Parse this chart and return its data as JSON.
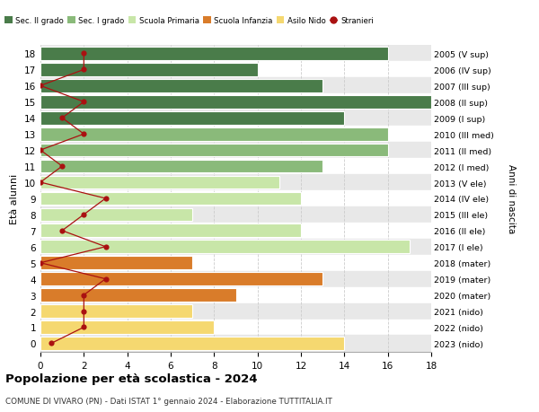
{
  "ages": [
    18,
    17,
    16,
    15,
    14,
    13,
    12,
    11,
    10,
    9,
    8,
    7,
    6,
    5,
    4,
    3,
    2,
    1,
    0
  ],
  "right_labels": [
    "2005 (V sup)",
    "2006 (IV sup)",
    "2007 (III sup)",
    "2008 (II sup)",
    "2009 (I sup)",
    "2010 (III med)",
    "2011 (II med)",
    "2012 (I med)",
    "2013 (V ele)",
    "2014 (IV ele)",
    "2015 (III ele)",
    "2016 (II ele)",
    "2017 (I ele)",
    "2018 (mater)",
    "2019 (mater)",
    "2020 (mater)",
    "2021 (nido)",
    "2022 (nido)",
    "2023 (nido)"
  ],
  "bar_values": [
    16,
    10,
    13,
    18,
    14,
    16,
    16,
    13,
    11,
    12,
    7,
    12,
    17,
    7,
    13,
    9,
    7,
    8,
    14
  ],
  "stranieri_values": [
    2,
    2,
    0,
    2,
    1,
    2,
    0,
    1,
    0,
    3,
    2,
    1,
    3,
    0,
    3,
    2,
    2,
    2,
    0.5
  ],
  "bar_colors": [
    "#4a7c4a",
    "#4a7c4a",
    "#4a7c4a",
    "#4a7c4a",
    "#4a7c4a",
    "#8aba7a",
    "#8aba7a",
    "#8aba7a",
    "#c8e6a8",
    "#c8e6a8",
    "#c8e6a8",
    "#c8e6a8",
    "#c8e6a8",
    "#d97c2a",
    "#d97c2a",
    "#d97c2a",
    "#f5d870",
    "#f5d870",
    "#f5d870"
  ],
  "legend_labels": [
    "Sec. II grado",
    "Sec. I grado",
    "Scuola Primaria",
    "Scuola Infanzia",
    "Asilo Nido",
    "Stranieri"
  ],
  "legend_colors_patch": [
    "#4a7c4a",
    "#8aba7a",
    "#c8e6a8",
    "#d97c2a",
    "#f5d870"
  ],
  "stranieri_color": "#aa1111",
  "title": "Popolazione per età scolastica - 2024",
  "subtitle": "COMUNE DI VIVARO (PN) - Dati ISTAT 1° gennaio 2024 - Elaborazione TUTTITALIA.IT",
  "ylabel": "Età alunni",
  "right_ylabel": "Anni di nascita",
  "xlim": [
    0,
    18
  ],
  "xticks": [
    0,
    2,
    4,
    6,
    8,
    10,
    12,
    14,
    16,
    18
  ],
  "row_colors": [
    "#e8e8e8",
    "#ffffff"
  ],
  "bg_color": "#ffffff",
  "grid_color": "#cccccc"
}
